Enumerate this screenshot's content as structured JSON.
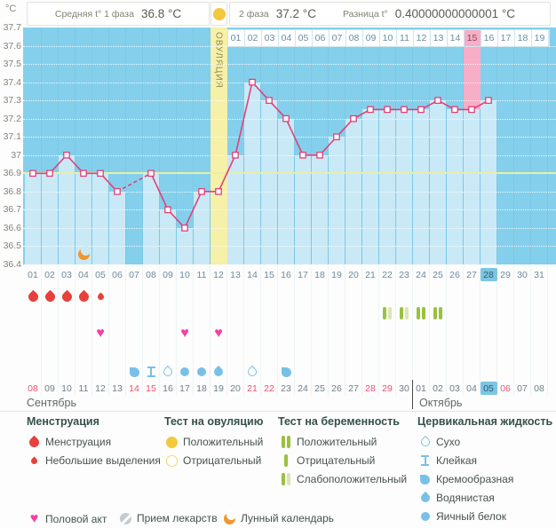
{
  "header": {
    "unit": "°C",
    "phase1_label": "Средняя t° 1 фаза",
    "phase1_value": "36.8 °C",
    "phase2_label": "2 фаза",
    "phase2_value": "37.2 °C",
    "diff_label": "Разница t°",
    "diff_value": "0.40000000000001 °C"
  },
  "colors": {
    "chart_bg": "#84d0ec",
    "column_fill": "#c9e9f7",
    "ovulation_band": "#f6f0a8",
    "highlight_pink": "#f8aec6",
    "coverline": "#e9efa2",
    "line": "#e04078",
    "marker_fill": "#ffffff",
    "menstruation": "#e6413c",
    "heart": "#f440a6",
    "test_positive_bar": "#9cc03e",
    "test_weak_bar": "#dbe5b4",
    "ovu_test_yellow": "#f2c83d",
    "fluid_blue": "#79c0e8",
    "pill_gray": "#c6cacd",
    "moon_orange": "#f0982e",
    "day_highlight": "#7cc6e4",
    "red_date": "#ef5172"
  },
  "chart_data": {
    "type": "line",
    "title": "Basal body temperature cycle chart",
    "ylabel": "°C",
    "ylim": [
      36.4,
      37.7
    ],
    "y_ticks": [
      "37.7",
      "37.6",
      "37.5",
      "37.4",
      "37.3",
      "37.2",
      "37.1",
      "37",
      "36.9",
      "36.8",
      "36.7",
      "36.6",
      "36.5",
      "36.4"
    ],
    "x_days": [
      "01",
      "02",
      "03",
      "04",
      "05",
      "06",
      "07",
      "08",
      "09",
      "10",
      "11",
      "12",
      "13",
      "14",
      "15",
      "16",
      "17",
      "18",
      "19",
      "20",
      "21",
      "22",
      "23",
      "24",
      "25",
      "26",
      "27",
      "28",
      "29",
      "30",
      "31"
    ],
    "temperatures": [
      36.9,
      36.9,
      37,
      36.9,
      36.9,
      36.8,
      null,
      36.9,
      36.7,
      36.6,
      36.8,
      36.8,
      37,
      37.4,
      37.3,
      37.2,
      37,
      37,
      37.1,
      37.2,
      37.25,
      37.25,
      37.25,
      37.25,
      37.3,
      37.25,
      37.25,
      37.3,
      null,
      null,
      null
    ],
    "coverline": 36.9,
    "ovulation_day": 12,
    "ovulation_label": "ОВУЛЯЦИЯ",
    "highlight_day": 27,
    "today_day": 28,
    "phase2_days": [
      "01",
      "02",
      "03",
      "04",
      "05",
      "06",
      "07",
      "08",
      "09",
      "10",
      "11",
      "12",
      "13",
      "14",
      "15",
      "16",
      "17",
      "18",
      "19"
    ],
    "phase2_highlight": "15",
    "moon_day": 4,
    "grid": "dotted horizontal every 0.1",
    "legend_position": "bottom"
  },
  "events": {
    "menstruation_days": [
      1,
      2,
      3,
      4
    ],
    "spotting_days": [
      5
    ],
    "pregnancy_tests": [
      {
        "day": 22,
        "result": "weak"
      },
      {
        "day": 23,
        "result": "weak"
      },
      {
        "day": 24,
        "result": "positive"
      },
      {
        "day": 25,
        "result": "positive"
      }
    ],
    "intercourse_days": [
      5,
      10,
      12
    ],
    "cervical_fluid": [
      {
        "day": 7,
        "type": "creamy"
      },
      {
        "day": 8,
        "type": "sticky"
      },
      {
        "day": 9,
        "type": "dry"
      },
      {
        "day": 10,
        "type": "eggwhite"
      },
      {
        "day": 11,
        "type": "eggwhite"
      },
      {
        "day": 12,
        "type": "watery"
      },
      {
        "day": 14,
        "type": "dry"
      },
      {
        "day": 16,
        "type": "creamy"
      }
    ]
  },
  "calendar": {
    "sep_label": "Сентябрь",
    "oct_label": "Октябрь",
    "dates": [
      "08",
      "09",
      "10",
      "11",
      "12",
      "13",
      "14",
      "15",
      "16",
      "17",
      "18",
      "19",
      "20",
      "21",
      "22",
      "23",
      "24",
      "25",
      "26",
      "27",
      "28",
      "29",
      "30",
      "01",
      "02",
      "03",
      "04",
      "05",
      "06",
      "07",
      "08"
    ],
    "red_cycle_days": [
      1,
      7,
      8,
      14,
      15,
      21,
      22,
      29
    ],
    "highlight_cycle_day": 28,
    "october_starts_at_cycle_day": 24
  },
  "legend": {
    "columns": [
      {
        "title": "Менструация",
        "items": [
          {
            "icon": "drop-large",
            "label": "Менструация"
          },
          {
            "icon": "drop-small",
            "label": "Небольшие выделения"
          }
        ]
      },
      {
        "title": "Тест на овуляцию",
        "items": [
          {
            "icon": "circle-filled",
            "label": "Положительный"
          },
          {
            "icon": "circle-outline",
            "label": "Отрицательный"
          }
        ]
      },
      {
        "title": "Тест на беременность",
        "items": [
          {
            "icon": "bars-positive",
            "label": "Положительный"
          },
          {
            "icon": "bar-negative",
            "label": "Отрицательный"
          },
          {
            "icon": "bars-weak",
            "label": "Слабоположительный"
          }
        ]
      },
      {
        "title": "Цервикальная жидкость",
        "items": [
          {
            "icon": "cf-dry",
            "label": "Сухо"
          },
          {
            "icon": "cf-sticky",
            "label": "Клейкая"
          },
          {
            "icon": "cf-creamy",
            "label": "Кремообразная"
          },
          {
            "icon": "cf-watery",
            "label": "Водянистая"
          },
          {
            "icon": "cf-eggwhite",
            "label": "Яичный белок"
          }
        ]
      }
    ],
    "bottom": [
      {
        "icon": "heart",
        "label": "Половой акт"
      },
      {
        "icon": "pill",
        "label": "Прием лекарств"
      },
      {
        "icon": "moon",
        "label": "Лунный календарь"
      }
    ]
  }
}
